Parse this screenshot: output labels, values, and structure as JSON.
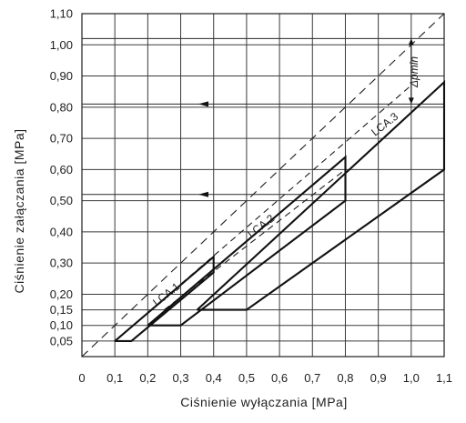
{
  "chart_data": {
    "type": "line",
    "title": "",
    "xlabel": "Ciśnienie wyłączania [MPa]",
    "ylabel": "Ciśnienie załączania [MPa]",
    "xlim": [
      0,
      1.1
    ],
    "ylim": [
      0,
      1.1
    ],
    "grid": true,
    "x_ticks": [
      "0",
      "0,1",
      "0,2",
      "0,3",
      "0,4",
      "0,5",
      "0,6",
      "0,7",
      "0,8",
      "0,9",
      "1,0",
      "1,1"
    ],
    "x_tick_values": [
      0,
      0.1,
      0.2,
      0.3,
      0.4,
      0.5,
      0.6,
      0.7,
      0.8,
      0.9,
      1.0,
      1.1
    ],
    "y_ticks": [
      "0,05",
      "0,10",
      "0,15",
      "0,20",
      "0,30",
      "0,40",
      "0,50",
      "0,60",
      "0,70",
      "0,80",
      "0,90",
      "1,00",
      "1,10"
    ],
    "y_tick_values": [
      0.05,
      0.1,
      0.15,
      0.2,
      0.3,
      0.4,
      0.5,
      0.6,
      0.7,
      0.8,
      0.9,
      1.0,
      1.1
    ],
    "series": [
      {
        "name": "LCA.1",
        "points": [
          [
            0.1,
            0.05
          ],
          [
            0.15,
            0.05
          ],
          [
            0.4,
            0.27
          ],
          [
            0.4,
            0.32
          ],
          [
            0.1,
            0.05
          ]
        ]
      },
      {
        "name": "LCA.2",
        "points": [
          [
            0.2,
            0.1
          ],
          [
            0.3,
            0.1
          ],
          [
            0.8,
            0.5
          ],
          [
            0.8,
            0.64
          ],
          [
            0.2,
            0.1
          ]
        ]
      },
      {
        "name": "LCA.3",
        "points": [
          [
            0.35,
            0.15
          ],
          [
            0.5,
            0.15
          ],
          [
            1.1,
            0.6
          ],
          [
            1.1,
            0.88
          ],
          [
            0.35,
            0.15
          ]
        ]
      }
    ],
    "reference_lines": [
      {
        "kind": "diagonal",
        "points": [
          [
            0,
            0
          ],
          [
            1.1,
            1.1
          ]
        ]
      },
      {
        "kind": "offset-diagonal",
        "points": [
          [
            0.1,
            0.05
          ],
          [
            1.0,
            0.87
          ]
        ]
      },
      {
        "kind": "offset-diagonal",
        "points": [
          [
            0.25,
            0.15
          ],
          [
            0.8,
            0.6
          ]
        ]
      }
    ],
    "horizontal_lines": [
      1.02,
      0.81,
      0.52
    ],
    "arrow_levels": [
      0.81,
      0.52
    ],
    "annotations": [
      {
        "text": "Δpmin",
        "x": 1.0,
        "y_from": 0.81,
        "y_to": 1.02
      }
    ]
  }
}
